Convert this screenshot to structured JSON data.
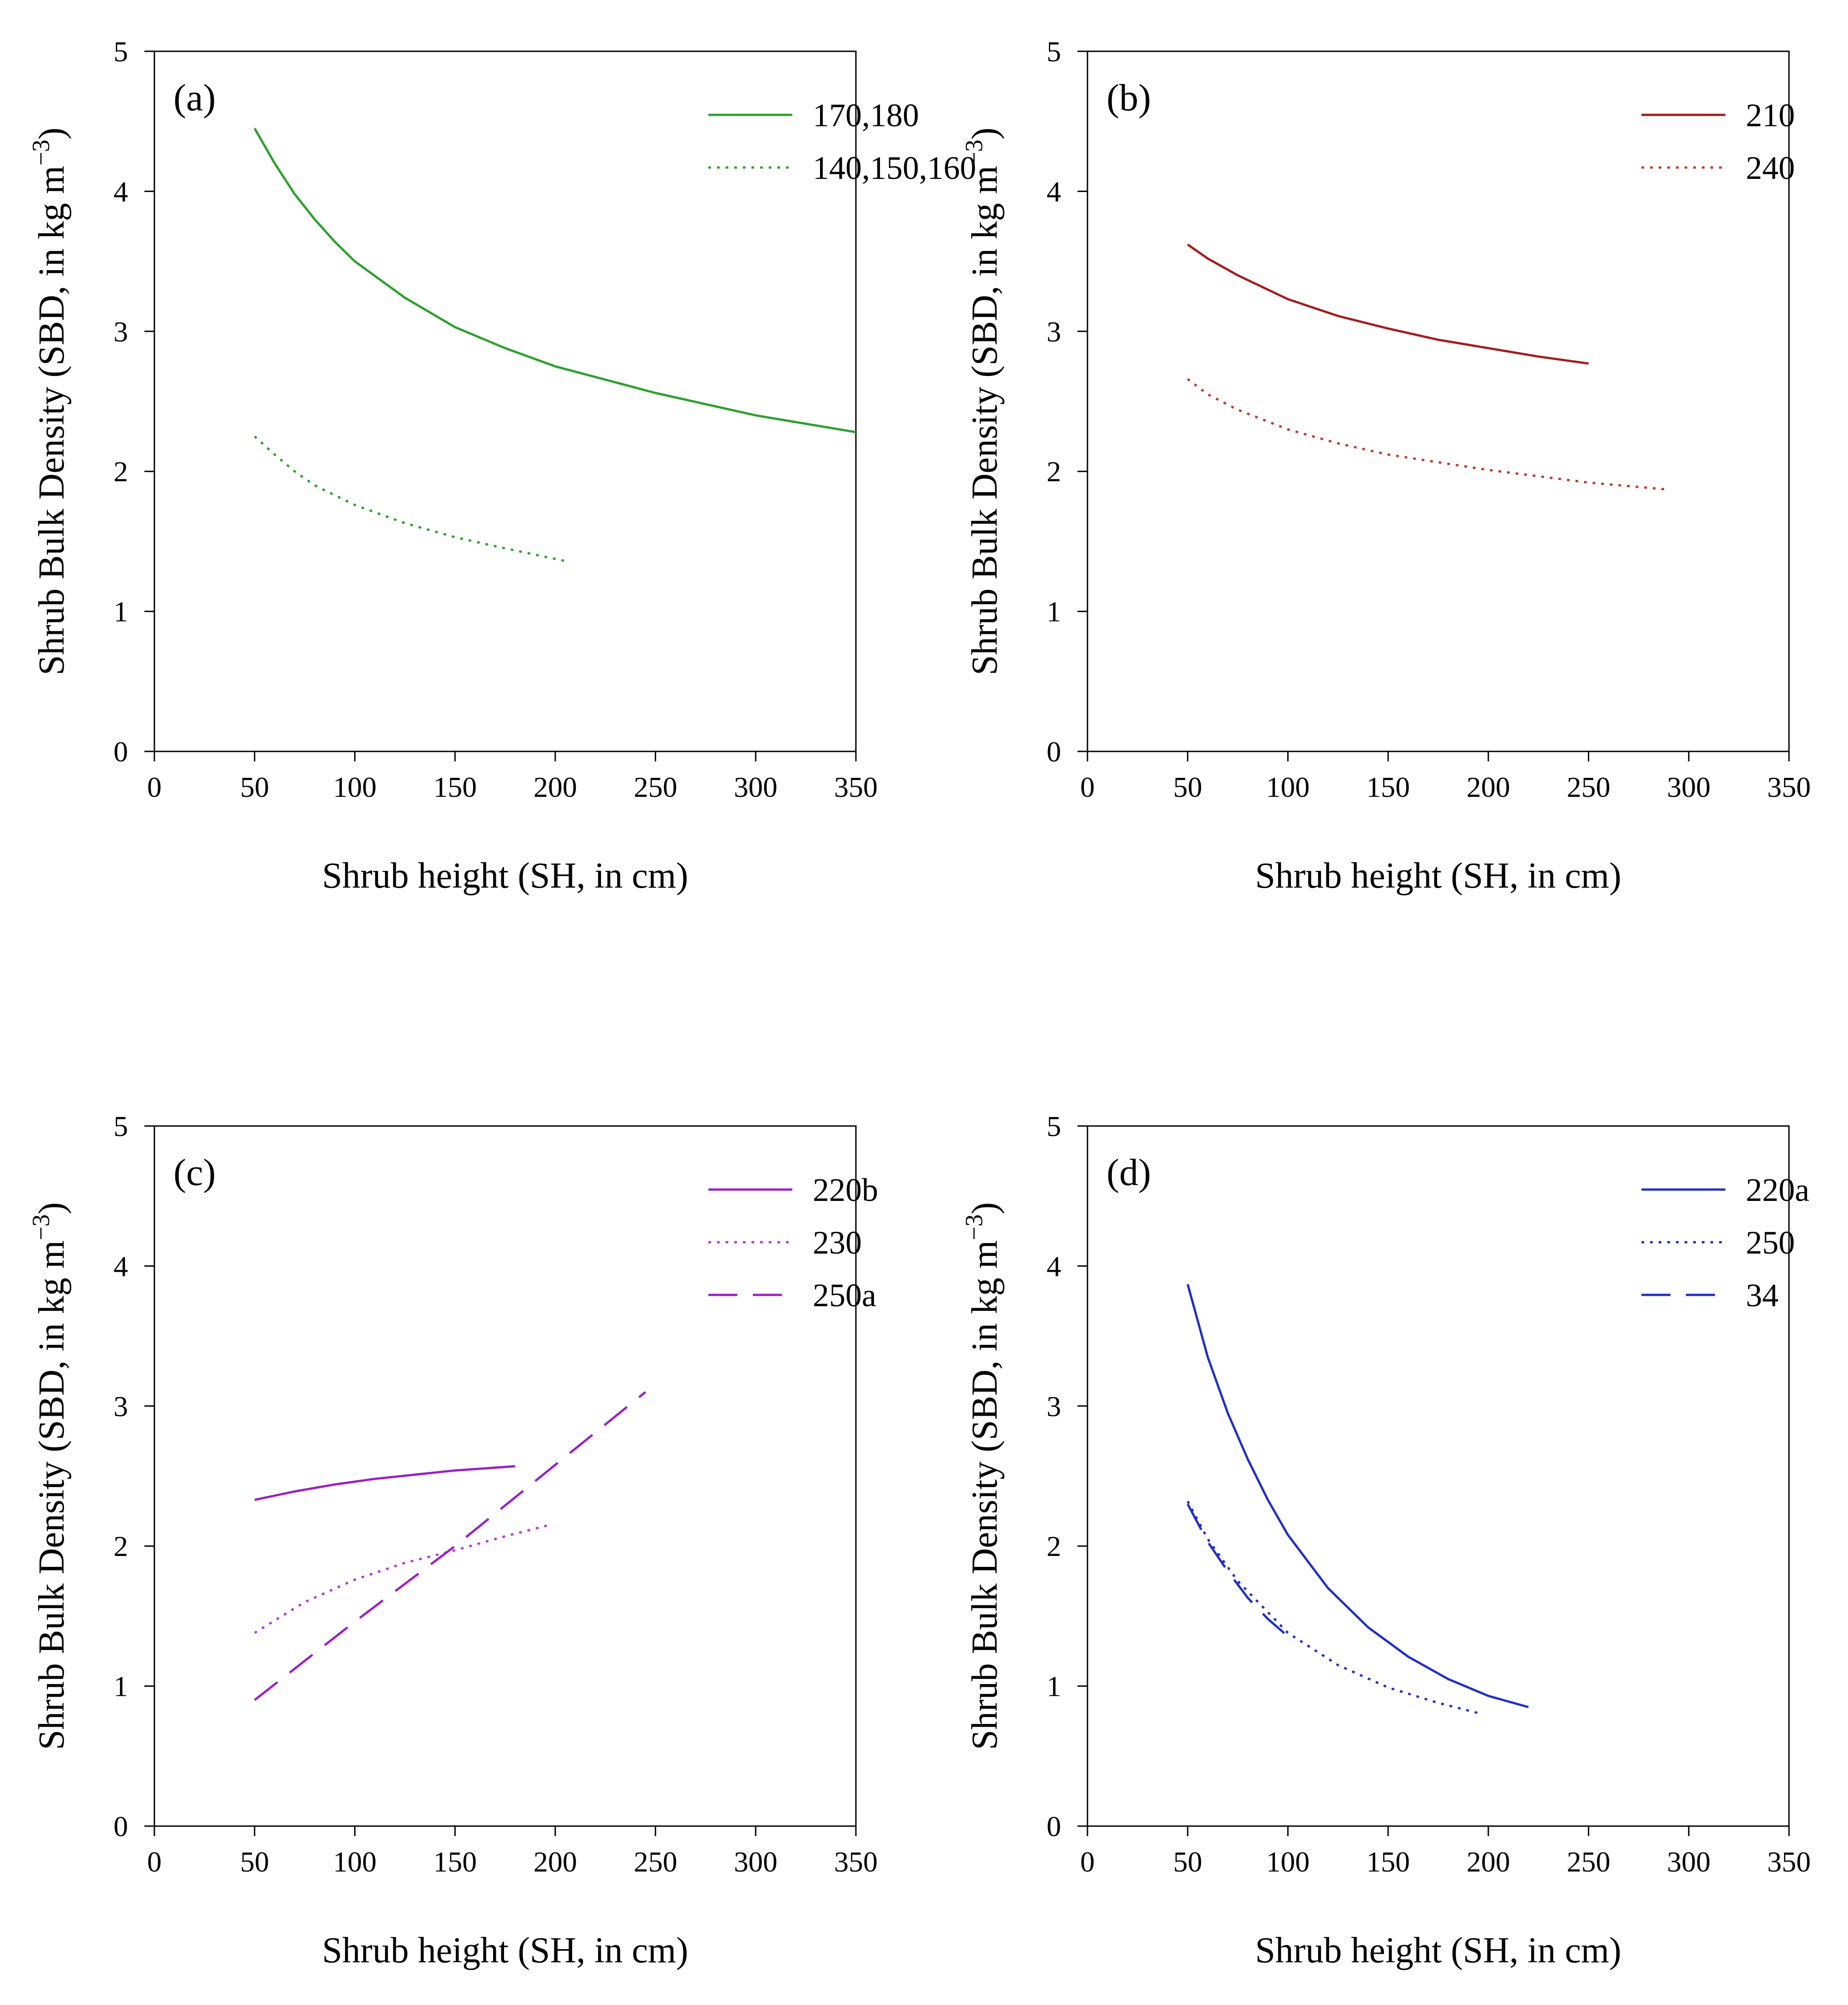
{
  "chart_data": [
    {
      "type": "line",
      "panel_label": "(a)",
      "xlabel": "Shrub height (SH, in cm)",
      "ylabel_main": "Shrub Bulk Density (SBD, in kg m",
      "ylabel_sup": "−3",
      "ylabel_close": ")",
      "xlim": [
        0,
        350
      ],
      "ylim": [
        0,
        5
      ],
      "xticks": [
        0,
        50,
        100,
        150,
        200,
        250,
        300,
        350
      ],
      "yticks": [
        0,
        1,
        2,
        3,
        4,
        5
      ],
      "grid": false,
      "legend_position": "top-right",
      "series": [
        {
          "name": "170,180",
          "color": "#2ca02c",
          "style": "solid",
          "x": [
            50,
            60,
            70,
            80,
            90,
            100,
            125,
            150,
            175,
            200,
            250,
            300,
            350
          ],
          "y": [
            4.45,
            4.2,
            3.98,
            3.8,
            3.64,
            3.5,
            3.24,
            3.03,
            2.88,
            2.75,
            2.56,
            2.4,
            2.28
          ]
        },
        {
          "name": "140,150,160",
          "color": "#2ca02c",
          "style": "dotted",
          "x": [
            50,
            60,
            70,
            80,
            100,
            125,
            150,
            175,
            205
          ],
          "y": [
            2.25,
            2.12,
            2.0,
            1.9,
            1.76,
            1.63,
            1.53,
            1.45,
            1.36
          ]
        }
      ]
    },
    {
      "type": "line",
      "panel_label": "(b)",
      "xlabel": "Shrub height (SH, in cm)",
      "ylabel_main": "Shrub Bulk Density (SBD, in kg m",
      "ylabel_sup": "−3",
      "ylabel_close": ")",
      "xlim": [
        0,
        350
      ],
      "ylim": [
        0,
        5
      ],
      "xticks": [
        0,
        50,
        100,
        150,
        200,
        250,
        300,
        350
      ],
      "yticks": [
        0,
        1,
        2,
        3,
        4,
        5
      ],
      "grid": false,
      "legend_position": "top-right",
      "series": [
        {
          "name": "210",
          "color": "#a31c1c",
          "style": "solid",
          "x": [
            50,
            60,
            75,
            100,
            125,
            150,
            175,
            200,
            225,
            250
          ],
          "y": [
            3.62,
            3.52,
            3.4,
            3.23,
            3.11,
            3.02,
            2.94,
            2.88,
            2.82,
            2.77
          ]
        },
        {
          "name": "240",
          "color": "#c0392b",
          "style": "dotted",
          "x": [
            50,
            60,
            75,
            100,
            125,
            150,
            200,
            250,
            290
          ],
          "y": [
            2.66,
            2.55,
            2.44,
            2.3,
            2.2,
            2.12,
            2.01,
            1.92,
            1.87
          ]
        }
      ]
    },
    {
      "type": "line",
      "panel_label": "(c)",
      "xlabel": "Shrub height (SH, in cm)",
      "ylabel_main": "Shrub Bulk Density (SBD, in kg m",
      "ylabel_sup": "−3",
      "ylabel_close": ")",
      "xlim": [
        0,
        350
      ],
      "ylim": [
        0,
        5
      ],
      "xticks": [
        0,
        50,
        100,
        150,
        200,
        250,
        300,
        350
      ],
      "yticks": [
        0,
        1,
        2,
        3,
        4,
        5
      ],
      "grid": false,
      "legend_position": "top-right",
      "series": [
        {
          "name": "220b",
          "color": "#9b1fc4",
          "style": "solid",
          "x": [
            50,
            70,
            90,
            110,
            130,
            150,
            180
          ],
          "y": [
            2.33,
            2.39,
            2.44,
            2.48,
            2.51,
            2.54,
            2.57
          ]
        },
        {
          "name": "230",
          "color": "#b03ad6",
          "style": "dotted",
          "x": [
            50,
            75,
            100,
            125,
            150,
            175,
            197
          ],
          "y": [
            1.38,
            1.6,
            1.76,
            1.88,
            1.97,
            2.07,
            2.15
          ]
        },
        {
          "name": "250a",
          "color": "#9b1fc4",
          "style": "dashed",
          "x": [
            50,
            100,
            150,
            200,
            245
          ],
          "y": [
            0.9,
            1.46,
            2.0,
            2.58,
            3.1
          ]
        }
      ]
    },
    {
      "type": "line",
      "panel_label": "(d)",
      "xlabel": "Shrub height (SH, in cm)",
      "ylabel_main": "Shrub Bulk Density (SBD, in kg m",
      "ylabel_sup": "−3",
      "ylabel_close": ")",
      "xlim": [
        0,
        350
      ],
      "ylim": [
        0,
        5
      ],
      "xticks": [
        0,
        50,
        100,
        150,
        200,
        250,
        300,
        350
      ],
      "yticks": [
        0,
        1,
        2,
        3,
        4,
        5
      ],
      "grid": false,
      "legend_position": "top-right",
      "series": [
        {
          "name": "220a",
          "color": "#1f2fc4",
          "style": "solid",
          "x": [
            50,
            60,
            70,
            80,
            90,
            100,
            120,
            140,
            160,
            180,
            200,
            220
          ],
          "y": [
            3.87,
            3.35,
            2.95,
            2.62,
            2.33,
            2.08,
            1.7,
            1.42,
            1.21,
            1.05,
            0.93,
            0.85
          ]
        },
        {
          "name": "250",
          "color": "#1f2fc4",
          "style": "dotted",
          "x": [
            50,
            60,
            75,
            100,
            125,
            150,
            175,
            197
          ],
          "y": [
            2.32,
            2.05,
            1.75,
            1.38,
            1.15,
            0.99,
            0.88,
            0.8
          ]
        },
        {
          "name": "34",
          "color": "#1f2fc4",
          "style": "dashed",
          "x": [
            50,
            60,
            70,
            80,
            90,
            102
          ],
          "y": [
            2.3,
            2.03,
            1.82,
            1.63,
            1.48,
            1.33
          ]
        }
      ]
    }
  ]
}
